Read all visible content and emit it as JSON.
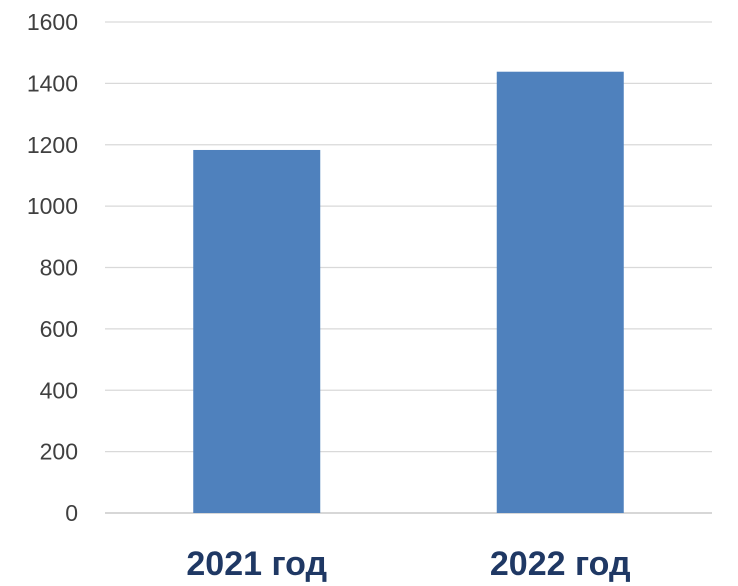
{
  "chart_data": {
    "type": "bar",
    "categories": [
      "2021 год",
      "2022 год"
    ],
    "values": [
      1183,
      1438
    ],
    "ylim": [
      0,
      1600
    ],
    "yticks": [
      "0",
      "200",
      "400",
      "600",
      "800",
      "1000",
      "1200",
      "1400",
      "1600"
    ],
    "grid": true,
    "legend": "none",
    "colors": {
      "bar": "#4F81BD",
      "category_label": "#1F3864",
      "tick_label": "#404040",
      "grid": "#d9d9d9"
    }
  }
}
